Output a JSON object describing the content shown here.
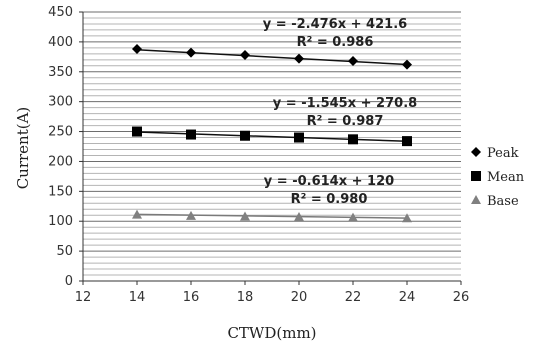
{
  "chart_data": {
    "type": "scatter",
    "title": "",
    "xlabel": "CTWD(mm)",
    "ylabel": "Current(A)",
    "xlim": [
      12,
      26
    ],
    "ylim": [
      0,
      450
    ],
    "x_ticks": [
      "12",
      "14",
      "16",
      "18",
      "20",
      "22",
      "24",
      "26"
    ],
    "y_ticks": [
      "0",
      "50",
      "100",
      "150",
      "200",
      "250",
      "300",
      "350",
      "400",
      "450"
    ],
    "grid": "horizontal",
    "legend_position": "right",
    "x": [
      14,
      16,
      18,
      20,
      22,
      24
    ],
    "series": [
      {
        "name": "Peak",
        "marker": "diamond",
        "color": "#000000",
        "values": [
          388,
          382,
          378,
          372,
          368,
          362
        ],
        "trendline": {
          "slope": -2.476,
          "intercept": 421.6,
          "equation": "y = -2.476x + 421.6",
          "r2": "R² = 0.986"
        }
      },
      {
        "name": "Mean",
        "marker": "square",
        "color": "#000000",
        "values": [
          250,
          245,
          243,
          240,
          237,
          234
        ],
        "trendline": {
          "slope": -1.545,
          "intercept": 270.8,
          "equation": "y = -1.545x + 270.8",
          "r2": "R² = 0.987"
        }
      },
      {
        "name": "Base",
        "marker": "triangle",
        "color": "#808080",
        "values": [
          111,
          109,
          108,
          107,
          106,
          105
        ],
        "trendline": {
          "slope": -0.614,
          "intercept": 120,
          "equation": "y = -0.614x + 120",
          "r2": "R² = 0.980"
        }
      }
    ]
  }
}
